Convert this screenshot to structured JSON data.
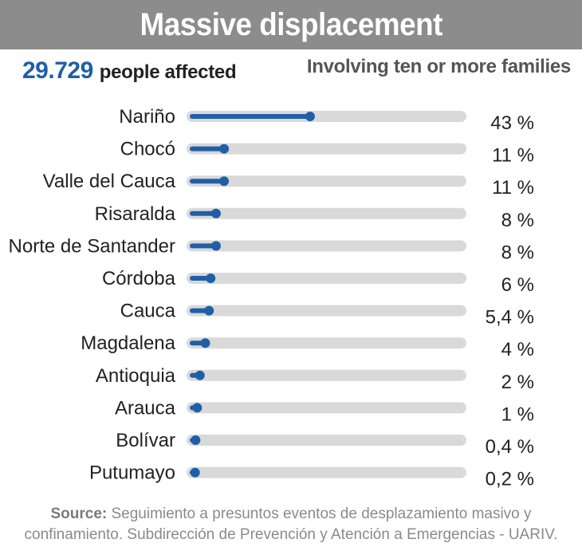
{
  "header": {
    "title": "Massive displacement",
    "summary_value": "29.729",
    "summary_text": "people affected",
    "subtitle": "Involving ten or more families"
  },
  "colors": {
    "accent": "#1f5fa6",
    "track": "#d9d9d9",
    "title_bar": "#8c8c8c"
  },
  "chart_data": {
    "type": "bar",
    "orientation": "horizontal",
    "categories": [
      "Nariño",
      "Chocó",
      "Valle del Cauca",
      "Risaralda",
      "Norte de Santander",
      "Córdoba",
      "Cauca",
      "Magdalena",
      "Antioquia",
      "Arauca",
      "Bolívar",
      "Putumayo"
    ],
    "values": [
      43,
      11,
      11,
      8,
      8,
      6,
      5.4,
      4,
      2,
      1,
      0.4,
      0.2
    ],
    "value_labels": [
      "43 %",
      "11 %",
      "11 %",
      "8 %",
      "8 %",
      "6 %",
      "5,4 %",
      "4 %",
      "2 %",
      "1 %",
      "0,4 %",
      "0,2 %"
    ],
    "xlim": [
      0,
      100
    ],
    "grid": false,
    "legend": "none"
  },
  "footer": {
    "source_label": "Source:",
    "source_text": "Seguimiento a presuntos eventos de desplazamiento masivo y confinamiento. Subdirección de Prevención y Atención a Emergencias - UARIV."
  }
}
